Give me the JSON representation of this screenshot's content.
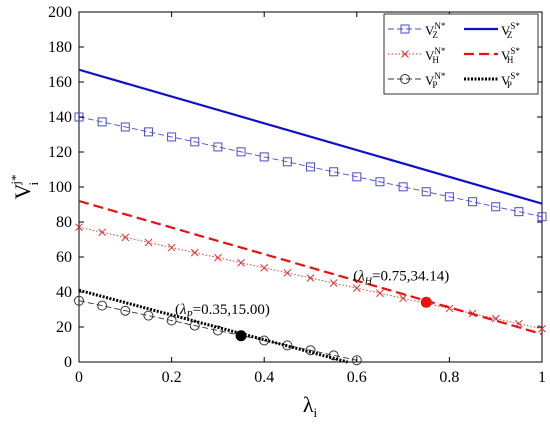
{
  "chart_data": {
    "type": "line",
    "xlabel": "λi",
    "ylabel": "Vij*",
    "xlim": [
      0,
      1
    ],
    "ylim": [
      0,
      200
    ],
    "xticks": [
      0,
      0.2,
      0.4,
      0.6,
      0.8,
      1
    ],
    "xtick_labels": [
      "0",
      "0.2",
      "0.4",
      "0.6",
      "0.8",
      "1"
    ],
    "yticks": [
      0,
      20,
      40,
      60,
      80,
      100,
      120,
      140,
      160,
      180,
      200
    ],
    "ytick_labels": [
      "0",
      "20",
      "40",
      "60",
      "80",
      "100",
      "120",
      "140",
      "160",
      "180",
      "200"
    ],
    "grid": false,
    "legend_position": "top-right",
    "series": [
      {
        "name": "VZN*",
        "legend_base": "V",
        "legend_sup": "N",
        "legend_sub": "Z",
        "legend_star": "*",
        "color": "#4a4ad8",
        "dash": "6,3",
        "marker": "square",
        "x": [
          0,
          0.05,
          0.1,
          0.15,
          0.2,
          0.25,
          0.3,
          0.35,
          0.4,
          0.45,
          0.5,
          0.55,
          0.6,
          0.65,
          0.7,
          0.75,
          0.8,
          0.85,
          0.9,
          0.95,
          1
        ],
        "y": [
          140,
          137.2,
          134.3,
          131.5,
          128.6,
          125.8,
          122.9,
          120.1,
          117.2,
          114.4,
          111.5,
          108.7,
          105.8,
          103.0,
          100.1,
          97.3,
          94.4,
          91.6,
          88.7,
          85.9,
          83
        ]
      },
      {
        "name": "VHN*",
        "legend_base": "V",
        "legend_sup": "N",
        "legend_sub": "H",
        "legend_star": "*",
        "color": "#e03030",
        "dash": "1.5,2",
        "marker": "x",
        "x": [
          0,
          0.05,
          0.1,
          0.15,
          0.2,
          0.25,
          0.3,
          0.35,
          0.4,
          0.45,
          0.5,
          0.55,
          0.6,
          0.65,
          0.7,
          0.75,
          0.8,
          0.85,
          0.9,
          0.95,
          1
        ],
        "y": [
          77,
          74.1,
          71.2,
          68.3,
          65.4,
          62.5,
          59.6,
          56.7,
          53.8,
          50.9,
          48.0,
          45.1,
          42.2,
          39.3,
          36.4,
          33.5,
          30.6,
          27.7,
          24.8,
          21.9,
          19
        ]
      },
      {
        "name": "VPN*",
        "legend_base": "V",
        "legend_sup": "N",
        "legend_sub": "P",
        "legend_star": "*",
        "color": "#333333",
        "dash": "6,3",
        "marker": "circle",
        "x": [
          0,
          0.05,
          0.1,
          0.15,
          0.2,
          0.25,
          0.3,
          0.35,
          0.4,
          0.45,
          0.5,
          0.55,
          0.6
        ],
        "y": [
          35,
          32.2,
          29.3,
          26.5,
          23.7,
          20.8,
          18.0,
          15.2,
          12.3,
          9.5,
          6.7,
          3.8,
          1
        ]
      },
      {
        "name": "VZS*",
        "legend_base": "V",
        "legend_sup": "S",
        "legend_sub": "Z",
        "legend_star": "*",
        "color": "#1010cc",
        "dash": "",
        "marker": "none",
        "x": [
          0,
          1
        ],
        "y": [
          167,
          90.5
        ]
      },
      {
        "name": "VHS*",
        "legend_base": "V",
        "legend_sup": "S",
        "legend_sub": "H",
        "legend_star": "*",
        "color": "#e81010",
        "dash": "10,5",
        "marker": "none",
        "x": [
          0,
          1
        ],
        "y": [
          92,
          16
        ]
      },
      {
        "name": "VPS*",
        "legend_base": "V",
        "legend_sup": "S",
        "legend_sub": "P",
        "legend_star": "*",
        "color": "#000000",
        "dash": "2,1.5",
        "marker": "none",
        "x": [
          0,
          0.58
        ],
        "y": [
          41,
          0
        ]
      }
    ],
    "legend_order": [
      0,
      3,
      1,
      4,
      2,
      5
    ],
    "annotations": [
      {
        "text": "(λP=0.35,15.00)",
        "label_main": "λ",
        "label_sub": "P",
        "label_rest": "=0.35,15.00)",
        "x": 0.35,
        "y": 15.0,
        "color": "#000000"
      },
      {
        "text": "(λH=0.75,34.14)",
        "label_main": "λ",
        "label_sub": "H",
        "label_rest": "=0.75,34.14)",
        "x": 0.75,
        "y": 34.14,
        "color": "#e81010"
      }
    ]
  }
}
